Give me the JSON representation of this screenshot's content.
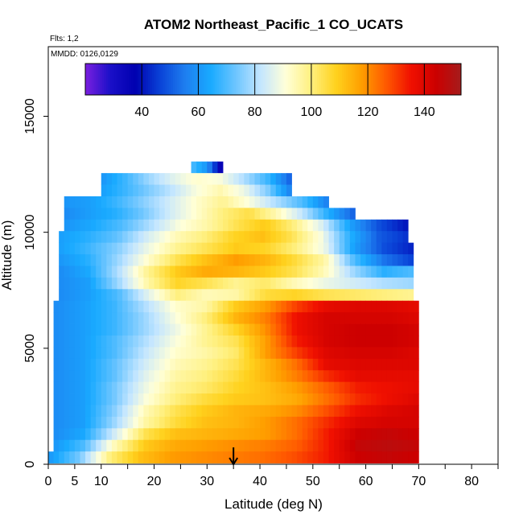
{
  "chart_data": {
    "type": "heatmap",
    "title": "ATOM2 Northeast_Pacific_1 CO_UCATS",
    "annotations": [
      "Flts: 1,2",
      "MMDD: 0126,0129"
    ],
    "xlabel": "Latitude (deg N)",
    "ylabel": "Altitude (m)",
    "xlim": [
      0,
      85
    ],
    "ylim": [
      0,
      18000
    ],
    "x_ticks": [
      0,
      5,
      10,
      15,
      20,
      25,
      30,
      35,
      40,
      45,
      50,
      55,
      60,
      65,
      70,
      75,
      80,
      85
    ],
    "x_tick_labels": [
      "0",
      "5",
      "10",
      "",
      "20",
      "",
      "30",
      "",
      "40",
      "",
      "50",
      "",
      "60",
      "",
      "70",
      "",
      "80",
      ""
    ],
    "y_ticks": [
      0,
      5000,
      10000,
      15000
    ],
    "y_tick_labels": [
      "0",
      "5000",
      "10000",
      "15000"
    ],
    "colorbar": {
      "range": [
        20,
        153
      ],
      "ticks": [
        40,
        60,
        80,
        100,
        120,
        140
      ],
      "tick_labels": [
        "40",
        "60",
        "80",
        "100",
        "120",
        "140"
      ],
      "colors": [
        "#7b1fe0",
        "#1a10c8",
        "#0000b0",
        "#0a44d8",
        "#1e7ff0",
        "#19aaff",
        "#6cc5ff",
        "#c4e6ff",
        "#ffffd8",
        "#fff080",
        "#ffd21e",
        "#ffa000",
        "#ff5a00",
        "#f01000",
        "#cc0000",
        "#a51c1c"
      ]
    },
    "marker": {
      "latitude": 35,
      "symbol": "arrow-down"
    },
    "description_rows": [
      {
        "alt": 12800,
        "from": 27,
        "to": 33,
        "values": [
          70,
          60,
          30
        ]
      },
      {
        "alt": 12300,
        "from": 10,
        "to": 46,
        "values": [
          60,
          68,
          78,
          86,
          92,
          90,
          80,
          68,
          50
        ]
      },
      {
        "alt": 11800,
        "from": 10,
        "to": 46,
        "values": [
          62,
          68,
          75,
          82,
          90,
          95,
          88,
          75,
          55
        ]
      },
      {
        "alt": 11300,
        "from": 3,
        "to": 53,
        "values": [
          60,
          62,
          68,
          76,
          84,
          92,
          98,
          90,
          80,
          70,
          55
        ]
      },
      {
        "alt": 10800,
        "from": 3,
        "to": 58,
        "values": [
          58,
          62,
          66,
          74,
          84,
          92,
          100,
          105,
          95,
          82,
          65,
          50
        ]
      },
      {
        "alt": 10300,
        "from": 3,
        "to": 68,
        "values": [
          60,
          64,
          70,
          80,
          90,
          96,
          104,
          110,
          100,
          85,
          62,
          48,
          40
        ]
      },
      {
        "alt": 9800,
        "from": 2,
        "to": 68,
        "values": [
          62,
          66,
          72,
          84,
          94,
          100,
          108,
          112,
          104,
          90,
          66,
          50,
          44
        ]
      },
      {
        "alt": 9300,
        "from": 2,
        "to": 69,
        "values": [
          62,
          68,
          76,
          88,
          98,
          104,
          110,
          108,
          100,
          88,
          62,
          48,
          42
        ]
      },
      {
        "alt": 8800,
        "from": 2,
        "to": 69,
        "values": [
          60,
          66,
          78,
          92,
          104,
          112,
          118,
          114,
          106,
          96,
          70,
          54,
          46
        ]
      },
      {
        "alt": 8300,
        "from": 2,
        "to": 69,
        "values": [
          58,
          64,
          80,
          98,
          110,
          116,
          114,
          110,
          104,
          94,
          78,
          66,
          70
        ]
      },
      {
        "alt": 7800,
        "from": 2,
        "to": 69,
        "values": [
          58,
          62,
          78,
          96,
          108,
          104,
          98,
          102,
          94,
          88,
          84,
          80,
          78
        ]
      },
      {
        "alt": 7300,
        "from": 2,
        "to": 69,
        "values": [
          58,
          62,
          70,
          86,
          100,
          94,
          96,
          106,
          108,
          104,
          102,
          100,
          98
        ]
      },
      {
        "alt": 6800,
        "from": 1,
        "to": 70,
        "values": [
          58,
          62,
          68,
          80,
          92,
          96,
          110,
          118,
          130,
          138,
          140,
          140,
          138
        ]
      },
      {
        "alt": 6300,
        "from": 1,
        "to": 70,
        "values": [
          58,
          62,
          68,
          78,
          90,
          100,
          114,
          122,
          136,
          142,
          142,
          142,
          140
        ]
      },
      {
        "alt": 5800,
        "from": 1,
        "to": 70,
        "values": [
          58,
          62,
          68,
          78,
          88,
          98,
          108,
          120,
          136,
          142,
          144,
          144,
          142
        ]
      },
      {
        "alt": 5300,
        "from": 1,
        "to": 70,
        "values": [
          58,
          62,
          70,
          80,
          90,
          98,
          104,
          118,
          134,
          142,
          144,
          144,
          142
        ]
      },
      {
        "alt": 4800,
        "from": 1,
        "to": 70,
        "values": [
          58,
          62,
          70,
          82,
          92,
          96,
          102,
          118,
          130,
          140,
          142,
          142,
          140
        ]
      },
      {
        "alt": 4300,
        "from": 1,
        "to": 70,
        "values": [
          58,
          62,
          72,
          84,
          94,
          98,
          104,
          114,
          124,
          138,
          140,
          140,
          140
        ]
      },
      {
        "alt": 3800,
        "from": 1,
        "to": 70,
        "values": [
          58,
          62,
          72,
          86,
          96,
          100,
          106,
          114,
          122,
          132,
          138,
          138,
          138
        ]
      },
      {
        "alt": 3300,
        "from": 1,
        "to": 70,
        "values": [
          58,
          62,
          74,
          88,
          98,
          102,
          108,
          112,
          118,
          126,
          134,
          136,
          138
        ]
      },
      {
        "alt": 2800,
        "from": 1,
        "to": 70,
        "values": [
          58,
          62,
          74,
          90,
          100,
          106,
          110,
          112,
          116,
          124,
          132,
          136,
          140
        ]
      },
      {
        "alt": 2300,
        "from": 1,
        "to": 70,
        "values": [
          58,
          62,
          76,
          94,
          104,
          110,
          114,
          116,
          120,
          128,
          136,
          140,
          142
        ]
      },
      {
        "alt": 1800,
        "from": 1,
        "to": 70,
        "values": [
          58,
          62,
          78,
          96,
          106,
          112,
          114,
          118,
          124,
          132,
          140,
          142,
          142
        ]
      },
      {
        "alt": 1300,
        "from": 1,
        "to": 70,
        "values": [
          58,
          64,
          84,
          104,
          112,
          114,
          116,
          118,
          124,
          134,
          144,
          146,
          144
        ]
      },
      {
        "alt": 800,
        "from": 1,
        "to": 70,
        "values": [
          60,
          70,
          94,
          110,
          116,
          118,
          120,
          122,
          126,
          134,
          146,
          148,
          146
        ]
      },
      {
        "alt": 300,
        "from": 0,
        "to": 70,
        "values": [
          60,
          74,
          100,
          112,
          118,
          120,
          122,
          124,
          128,
          134,
          144,
          146,
          144
        ]
      }
    ]
  }
}
